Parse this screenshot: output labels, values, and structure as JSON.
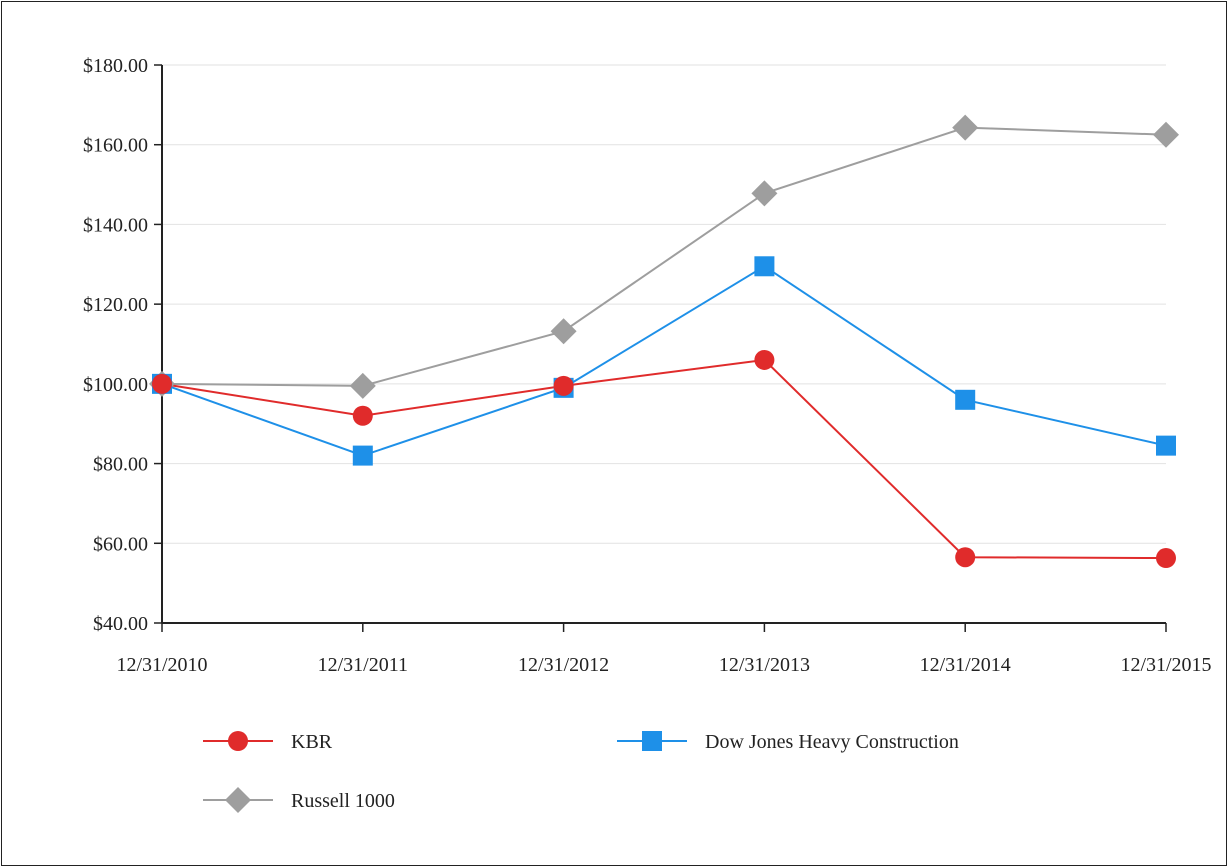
{
  "chart_data": {
    "type": "line",
    "title": "",
    "xlabel": "",
    "ylabel": "",
    "categories": [
      "12/31/2010",
      "12/31/2011",
      "12/31/2012",
      "12/31/2013",
      "12/31/2014",
      "12/31/2015"
    ],
    "ylim": [
      40,
      180
    ],
    "yticks": [
      40,
      60,
      80,
      100,
      120,
      140,
      160,
      180
    ],
    "ytick_labels": [
      "$40.00",
      "$60.00",
      "$80.00",
      "$100.00",
      "$120.00",
      "$140.00",
      "$160.00",
      "$180.00"
    ],
    "grid": true,
    "legend_position": "bottom",
    "series": [
      {
        "name": "KBR",
        "values": [
          100.0,
          92.0,
          99.5,
          106.0,
          56.5,
          56.3
        ],
        "color": "#e02b2b",
        "marker": "circle"
      },
      {
        "name": "Dow Jones Heavy Construction",
        "values": [
          100.0,
          82.0,
          99.0,
          129.5,
          96.0,
          84.5
        ],
        "color": "#1e90e8",
        "marker": "square"
      },
      {
        "name": "Russell 1000",
        "values": [
          100.0,
          99.5,
          113.2,
          147.8,
          164.3,
          162.5
        ],
        "color": "#9e9e9e",
        "marker": "diamond"
      }
    ]
  }
}
